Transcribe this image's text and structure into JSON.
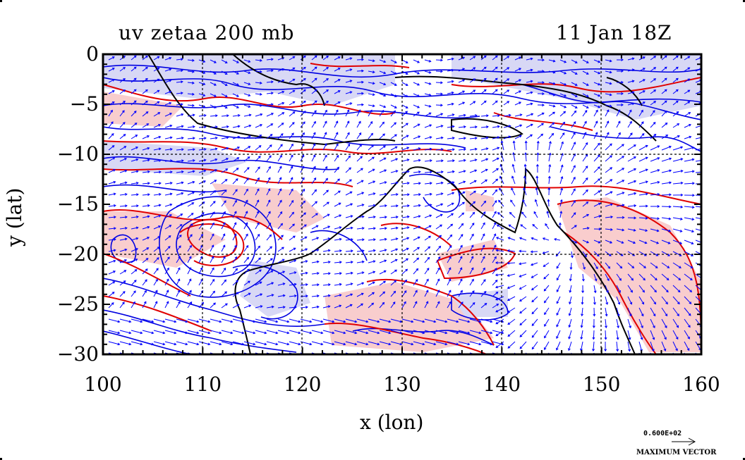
{
  "header": {
    "title_left": "uv zetaa 200 mb",
    "title_right": "11 Jan 18Z"
  },
  "axes": {
    "xlabel": "x (lon)",
    "ylabel": "y (lat)",
    "x_ticks": [
      "100",
      "110",
      "120",
      "130",
      "140",
      "150",
      "160"
    ],
    "y_ticks": [
      "0",
      "−5",
      "−10",
      "−15",
      "−20",
      "−25",
      "−30"
    ],
    "xlim": [
      100,
      160
    ],
    "ylim": [
      -30,
      0
    ]
  },
  "legend": {
    "max_vector_value": "0.600E+02",
    "max_vector_label": "MAXIMUM VECTOR"
  },
  "map": {
    "fields": [
      "wind vectors (uv)",
      "absolute vorticity anomaly (zetaa)"
    ],
    "level": "200 mb",
    "colors": {
      "positive": "#e00000",
      "positive_fill": "#f8c8c8",
      "negative": "#0000e0",
      "negative_fill": "#d4d4f4",
      "vector": "#0000ff",
      "coast": "#000000"
    }
  }
}
